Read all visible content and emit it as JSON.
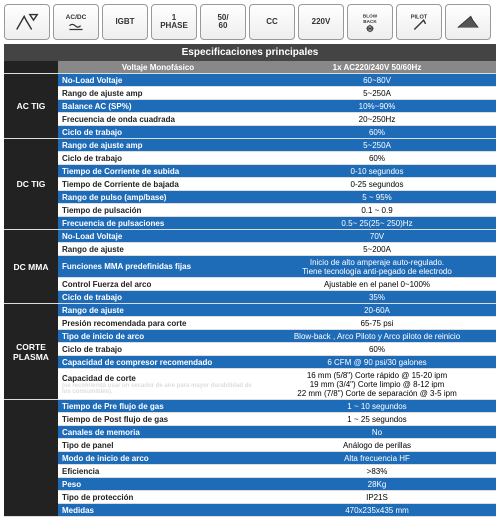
{
  "icons": [
    "",
    "AC/DC",
    "IGBT",
    "1\nPHASE",
    "50/\n60",
    "CC",
    "220V",
    "BLOW\nBACK",
    "PILOT",
    ""
  ],
  "title": "Especificaciones principales",
  "header": {
    "left": "Voltaje Monofásico",
    "right": "1x AC220/240V 50/60Hz"
  },
  "sections": [
    {
      "name": "AC TIG",
      "rows": [
        {
          "l": "No-Load Voltaje",
          "v": "60~80V",
          "b": true
        },
        {
          "l": "Rango de ajuste amp",
          "v": "5~250A",
          "b": false
        },
        {
          "l": "Balance AC (SP%)",
          "v": "10%~90%",
          "b": true
        },
        {
          "l": "Frecuencia de onda cuadrada",
          "v": "20~250Hz",
          "b": false
        },
        {
          "l": "Ciclo de trabajo",
          "v": "60%",
          "b": true
        }
      ]
    },
    {
      "name": "DC TIG",
      "rows": [
        {
          "l": "Rango de ajuste amp",
          "v": "5~250A",
          "b": true
        },
        {
          "l": "Ciclo de trabajo",
          "v": "60%",
          "b": false
        },
        {
          "l": "Tiempo de Corriente de subida",
          "v": "0-10 segundos",
          "b": true
        },
        {
          "l": "Tiempo de Corriente de bajada",
          "v": "0-25 segundos",
          "b": false
        },
        {
          "l": "Rango de pulso (amp/base)",
          "v": "5 ~ 95%",
          "b": true
        },
        {
          "l": "Tiempo de pulsación",
          "v": "0.1 ~ 0.9",
          "b": false
        },
        {
          "l": "Frecuencia de pulsaciones",
          "v": "0.5~ 25(25~ 250)Hz",
          "b": true
        }
      ]
    },
    {
      "name": "DC MMA",
      "rows": [
        {
          "l": "No-Load Voltaje",
          "v": "70V",
          "b": true
        },
        {
          "l": "Rango de ajuste",
          "v": "5~200A",
          "b": false
        },
        {
          "l": "Funciones MMA predefinidas fijas",
          "v": "Inicio de alto amperaje auto-regulado.\nTiene tecnología anti-pegado de electrodo",
          "b": true
        },
        {
          "l": "Control Fuerza del arco",
          "v": "Ajustable en el panel 0~100%",
          "b": false
        },
        {
          "l": "Ciclo de trabajo",
          "v": "35%",
          "b": true
        }
      ]
    },
    {
      "name": "CORTE\nPLASMA",
      "rows": [
        {
          "l": "Rango de ajuste",
          "v": "20-60A",
          "b": true
        },
        {
          "l": "Presión recomendada para corte",
          "v": "65-75 psi",
          "b": false
        },
        {
          "l": "Tipo de inicio de arco",
          "v": "Blow-back , Arco Piloto y Arco piloto de reinicio",
          "b": true
        },
        {
          "l": "Ciclo de trabajo",
          "v": "60%",
          "b": false
        },
        {
          "l": "Capacidad de compresor recomendado",
          "v": "6 CFM @ 90 psi/30 galones",
          "b": true
        },
        {
          "l": "Capacidad de corte(se recomienda usar un secador de aire para mayor durabilidad de los consumibles).",
          "v": "16 mm (5/8\") Corte rápido @ 15-20 ipm\n19 mm (3/4\") Corte limpio @ 8-12 ipm\n22 mm (7/8\") Corte de separación @ 3-5 ipm",
          "b": false,
          "tiny": true
        }
      ]
    },
    {
      "name": "",
      "rows": [
        {
          "l": "Tiempo de Pre flujo de gas",
          "v": "1 ~ 10 segundos",
          "b": true
        },
        {
          "l": "Tiempo de Post flujo de gas",
          "v": "1 ~ 25 segundos",
          "b": false
        },
        {
          "l": "Canales de memoria",
          "v": "No",
          "b": true
        },
        {
          "l": "Tipo de panel",
          "v": "Análogo de perillas",
          "b": false
        },
        {
          "l": "Modo de inicio de arco",
          "v": "Alta frecuencia HF",
          "b": true
        },
        {
          "l": "Eficiencia",
          "v": ">83%",
          "b": false
        },
        {
          "l": "Peso",
          "v": "28Kg",
          "b": true
        },
        {
          "l": "Tipo de protección",
          "v": "IP21S",
          "b": false
        },
        {
          "l": "Medidas",
          "v": "470x235x435 mm",
          "b": true
        }
      ]
    }
  ]
}
